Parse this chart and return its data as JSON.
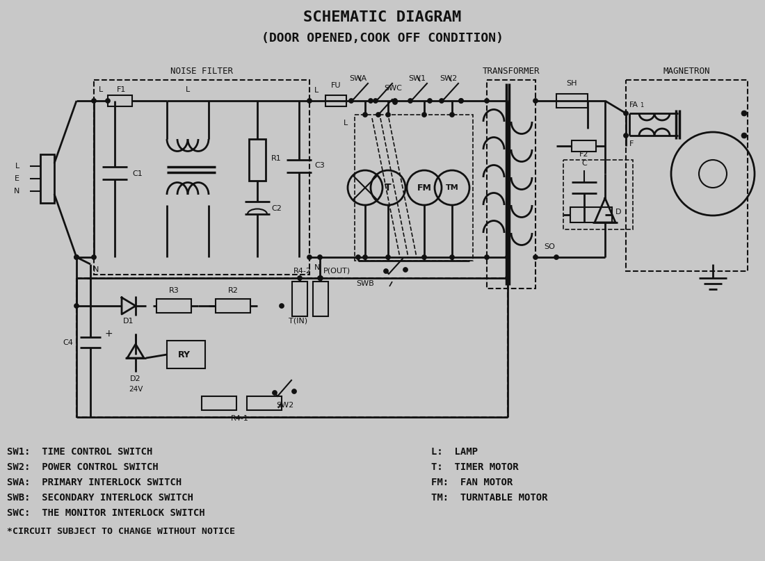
{
  "title1": "SCHEMATIC DIAGRAM",
  "title2": "(DOOR OPENED,COOK OFF CONDITION)",
  "bg_color": "#c8c8c8",
  "line_color": "#111111",
  "legend_left": [
    "SW1:  TIME CONTROL SWITCH",
    "SW2:  POWER CONTROL SWITCH",
    "SWA:  PRIMARY INTERLOCK SWITCH",
    "SWB:  SECONDARY INTERLOCK SWITCH",
    "SWC:  THE MONITOR INTERLOCK SWITCH"
  ],
  "legend_right": [
    "L:  LAMP",
    "T:  TIMER MOTOR",
    "FM:  FAN MOTOR",
    "TM:  TURNTABLE MOTOR"
  ],
  "footnote": "*CIRCUIT SUBJECT TO CHANGE WITHOUT NOTICE"
}
